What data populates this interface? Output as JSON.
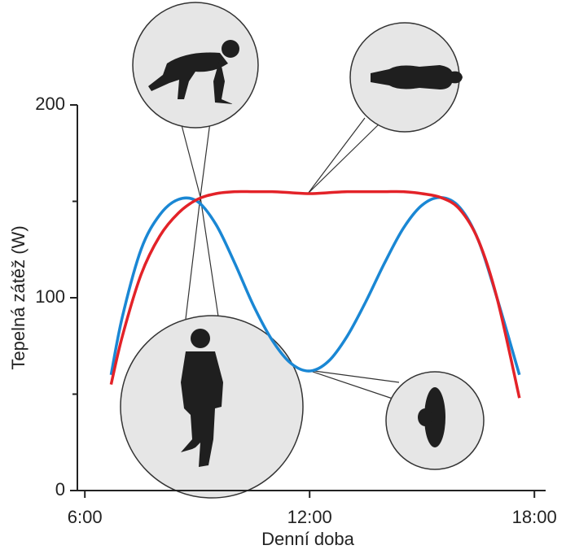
{
  "chart_data": {
    "type": "line",
    "y_label": "Tepelná zátěž (W)",
    "x_label": "Denní doba",
    "x": [
      6.7,
      7,
      7.5,
      8,
      8.5,
      9,
      9.5,
      10,
      10.5,
      11,
      11.5,
      12,
      12.5,
      13,
      13.5,
      14,
      14.5,
      15,
      15.5,
      16,
      16.5,
      17,
      17.6
    ],
    "series": [
      {
        "color": "#1a87d4",
        "values": [
          60,
          90,
          125,
          143,
          151,
          150,
          138,
          118,
          96,
          78,
          66,
          62,
          67,
          80,
          98,
          118,
          136,
          148,
          152,
          147,
          130,
          100,
          60
        ]
      },
      {
        "color": "#e32228",
        "values": [
          55,
          80,
          112,
          132,
          144,
          151,
          154,
          155,
          155,
          155,
          154.5,
          154,
          154.5,
          155,
          155,
          155,
          155,
          154,
          152,
          146,
          130,
          100,
          48
        ]
      }
    ],
    "xlim": [
      5.8,
      18.3
    ],
    "ylim": [
      0,
      200
    ],
    "xticks": [
      {
        "value": 6,
        "label": "6:00"
      },
      {
        "value": 12,
        "label": "12:00"
      },
      {
        "value": 18,
        "label": "18:00"
      }
    ],
    "yticks": [
      0,
      100,
      200
    ],
    "y_minor_ticks": [
      50,
      150
    ]
  }
}
